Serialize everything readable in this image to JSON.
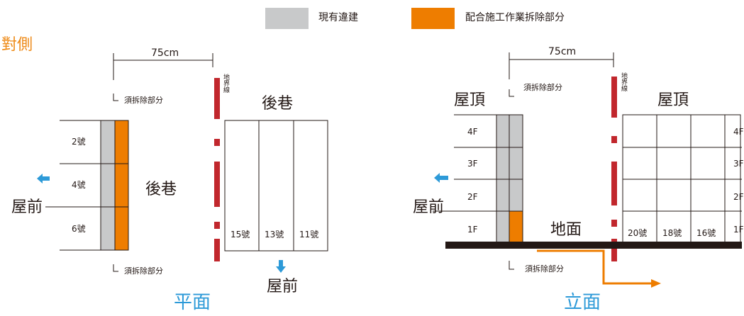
{
  "legend": {
    "existing": {
      "label": "現有違建",
      "color": "#c8c9ca"
    },
    "demolish": {
      "label": "配合施工作業拆除部分",
      "color": "#ee7d00"
    }
  },
  "colors": {
    "boundary": "#c1272d",
    "arrow": "#2d9ad8",
    "ground": "#231815",
    "orange_text": "#ee8a17"
  },
  "plan": {
    "side_label": "對側",
    "width_label": "75cm",
    "demolish_label": "須拆除部分",
    "boundary_label": "地界線",
    "lane_label_top": "後巷",
    "lane_label_mid": "後巷",
    "front_label_left": "屋前",
    "front_label_bottom": "屋前",
    "left_units": [
      "2號",
      "4號",
      "6號"
    ],
    "right_units": [
      "15號",
      "13號",
      "11號"
    ],
    "caption": "平面"
  },
  "elevation": {
    "width_label": "75cm",
    "demolish_label_top": "須拆除部分",
    "demolish_label_bottom": "須拆除部分",
    "boundary_label": "地界線",
    "roof_left": "屋頂",
    "roof_right": "屋頂",
    "ground_label": "地面",
    "front_label": "屋前",
    "left_floors": [
      "4F",
      "3F",
      "2F",
      "1F"
    ],
    "right_floors": [
      "4F",
      "3F",
      "2F",
      "1F"
    ],
    "right_units": [
      "20號",
      "18號",
      "16號"
    ],
    "caption": "立面"
  }
}
